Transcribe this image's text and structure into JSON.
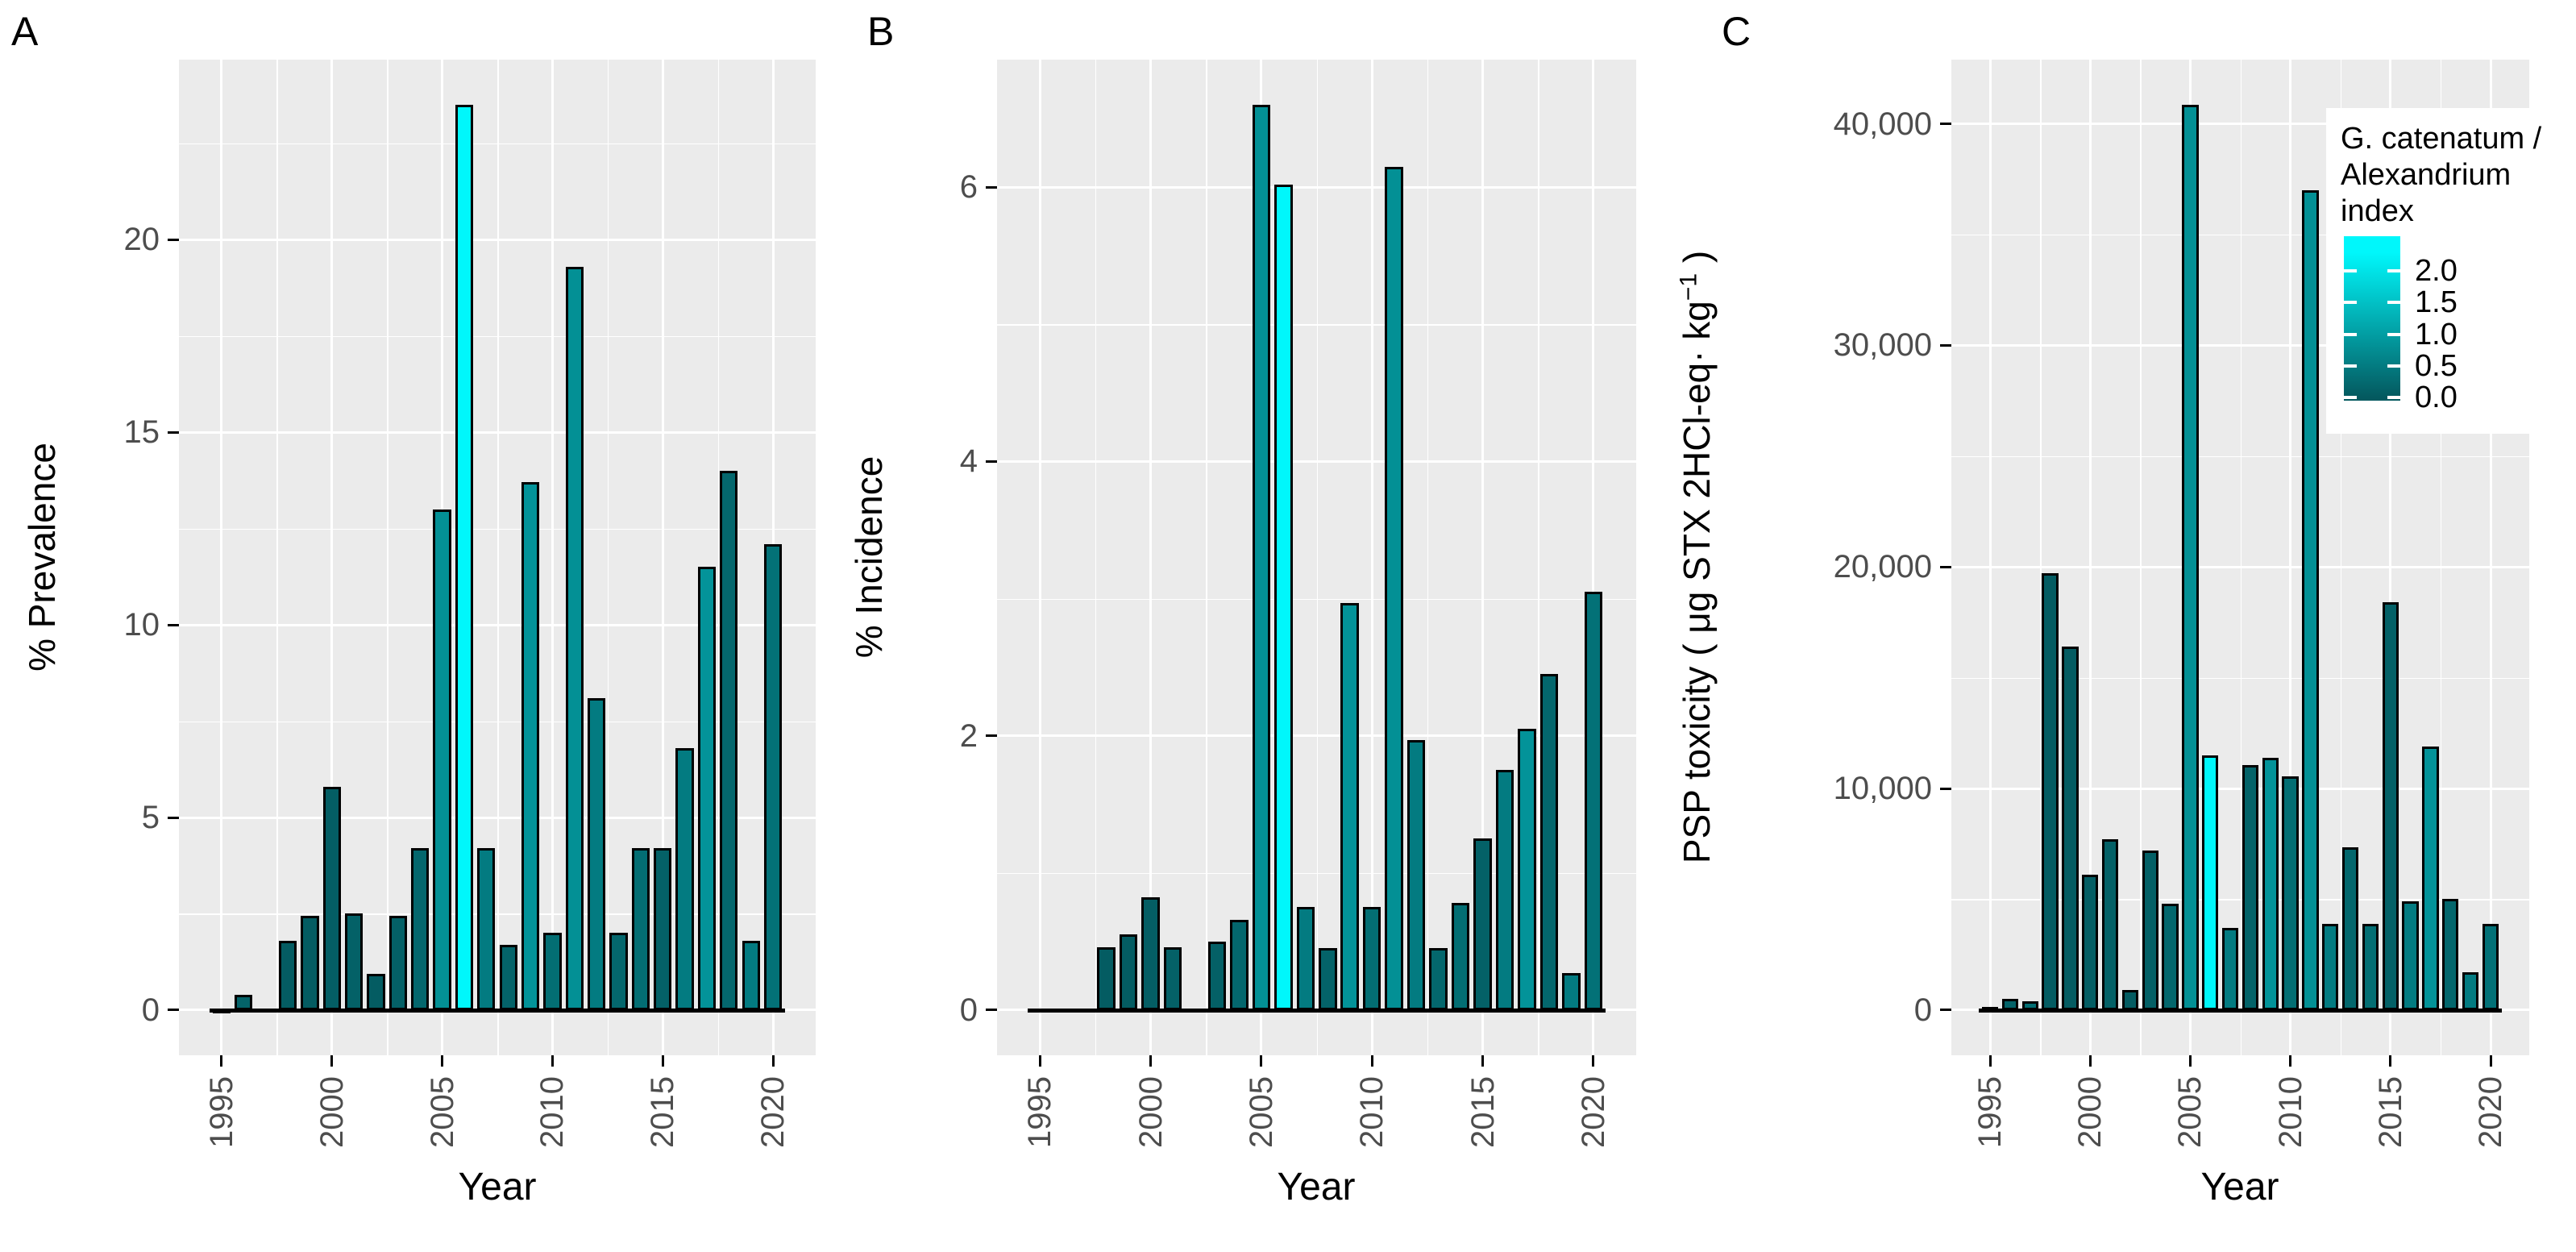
{
  "page": {
    "panel_letters": [
      "A",
      "B",
      "C"
    ],
    "x_axis_title": "Year"
  },
  "legend": {
    "title_text": "G. catenatum /\nAlexandrium\nindex",
    "tick_labels": [
      "2.0",
      "1.5",
      "1.0",
      "0.5",
      "0.0"
    ]
  },
  "color_scale": {
    "name": "G. catenatum / Alexandrium index",
    "domain": [
      0,
      2.3
    ],
    "min_color": "#04595F",
    "max_color": "#00F7FB",
    "legend_tick_values": [
      2.0,
      1.5,
      1.0,
      0.5,
      0.0
    ],
    "legend_bar_range": [
      -0.05,
      2.55
    ],
    "index_by_year": [
      0.05,
      0.15,
      0.3,
      0.05,
      0.05,
      0.08,
      0.12,
      0.05,
      0.1,
      0.2,
      0.8,
      2.3,
      0.5,
      0.15,
      0.85,
      0.3,
      0.8,
      0.5,
      0.2,
      0.3,
      0.12,
      0.5,
      0.85,
      0.2,
      0.5,
      0.35
    ]
  },
  "chart_data": [
    {
      "type": "bar",
      "panel": "A",
      "ylabel": "% Prevalence",
      "xlabel": "Year",
      "categories": [
        1995,
        1996,
        1997,
        1998,
        1999,
        2000,
        2001,
        2002,
        2003,
        2004,
        2005,
        2006,
        2007,
        2008,
        2009,
        2010,
        2011,
        2012,
        2013,
        2014,
        2015,
        2016,
        2017,
        2018,
        2019,
        2020
      ],
      "values": [
        0.05,
        0.4,
        0,
        1.8,
        2.45,
        5.8,
        2.5,
        0.95,
        2.45,
        4.2,
        13.0,
        23.5,
        4.2,
        1.7,
        13.7,
        2.0,
        19.3,
        8.1,
        2.0,
        4.2,
        4.2,
        6.8,
        11.5,
        14.0,
        1.8,
        12.1
      ],
      "y_ticks": [
        0,
        5,
        10,
        15,
        20
      ],
      "y_tick_labels": [
        "0",
        "5",
        "10",
        "15",
        "20"
      ],
      "y_minor_ticks": [
        2.5,
        7.5,
        12.5,
        17.5,
        22.5
      ],
      "x_ticks": [
        1995,
        2000,
        2005,
        2010,
        2015,
        2020
      ],
      "x_minor_ticks": [
        1997.5,
        2002.5,
        2007.5,
        2012.5,
        2017.5
      ],
      "ylim": [
        0,
        24.7
      ],
      "grid": true,
      "legend_position": "none"
    },
    {
      "type": "bar",
      "panel": "B",
      "ylabel": "% Incidence",
      "xlabel": "Year",
      "categories": [
        1995,
        1996,
        1997,
        1998,
        1999,
        2000,
        2001,
        2002,
        2003,
        2004,
        2005,
        2006,
        2007,
        2008,
        2009,
        2010,
        2011,
        2012,
        2013,
        2014,
        2015,
        2016,
        2017,
        2018,
        2019,
        2020
      ],
      "values": [
        0,
        0,
        0,
        0.46,
        0.55,
        0.82,
        0.46,
        0,
        0.5,
        0.66,
        6.6,
        6.02,
        0.75,
        0.45,
        2.97,
        0.75,
        6.15,
        1.97,
        0.45,
        0.78,
        1.25,
        1.75,
        2.05,
        2.45,
        0.27,
        3.05
      ],
      "y_ticks": [
        0,
        2,
        4,
        6
      ],
      "y_tick_labels": [
        "0",
        "2",
        "4",
        "6"
      ],
      "y_minor_ticks": [
        1,
        3,
        5
      ],
      "x_ticks": [
        1995,
        2000,
        2005,
        2010,
        2015,
        2020
      ],
      "x_minor_ticks": [
        1997.5,
        2002.5,
        2007.5,
        2012.5,
        2017.5
      ],
      "ylim": [
        0,
        6.95
      ],
      "grid": true,
      "legend_position": "none"
    },
    {
      "type": "bar",
      "panel": "C",
      "ylabel": "PSP toxicity ( μg STX 2HCl-eq· kg⁻¹ )",
      "ylabel_main": "PSP toxicity ( μg STX 2HCl-eq· kg",
      "ylabel_sup": "−1",
      "ylabel_end": " )",
      "xlabel": "Year",
      "categories": [
        1995,
        1996,
        1997,
        1998,
        1999,
        2000,
        2001,
        2002,
        2003,
        2004,
        2005,
        2006,
        2007,
        2008,
        2009,
        2010,
        2011,
        2012,
        2013,
        2014,
        2015,
        2016,
        2017,
        2018,
        2019,
        2020
      ],
      "values": [
        150,
        500,
        400,
        19700,
        16400,
        6100,
        7700,
        900,
        7200,
        4800,
        40850,
        11500,
        3700,
        11050,
        11400,
        10550,
        37000,
        3900,
        7350,
        3900,
        18400,
        4900,
        11900,
        5000,
        1700,
        3900
      ],
      "y_ticks": [
        0,
        10000,
        20000,
        30000,
        40000
      ],
      "y_tick_labels": [
        "0",
        "10,000",
        "20,000",
        "30,000",
        "40,000"
      ],
      "y_minor_ticks": [
        5000,
        15000,
        25000,
        35000
      ],
      "x_ticks": [
        1995,
        2000,
        2005,
        2010,
        2015,
        2020
      ],
      "x_minor_ticks": [
        1997.5,
        2002.5,
        2007.5,
        2012.5,
        2017.5
      ],
      "ylim": [
        0,
        42900
      ],
      "grid": true,
      "legend_position": "inside-top-right"
    }
  ]
}
